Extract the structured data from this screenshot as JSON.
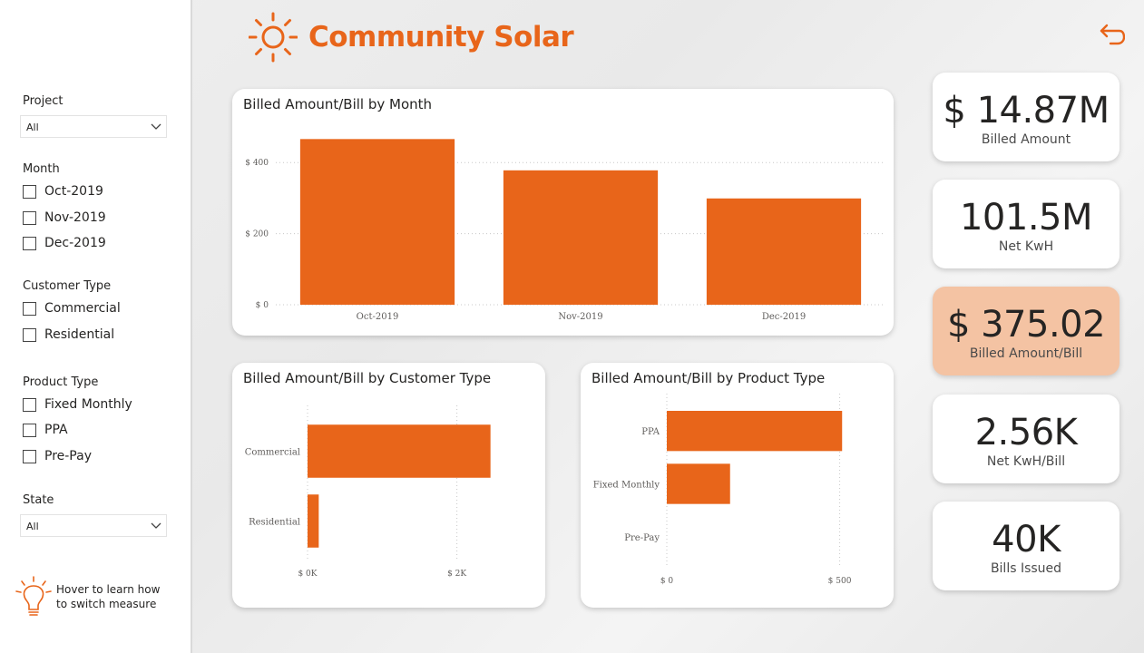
{
  "header": {
    "title": "Community Solar"
  },
  "colors": {
    "accent": "#e8651a",
    "highlight_card": "#f4c3a3"
  },
  "slicers": {
    "project": {
      "title": "Project",
      "value": "All"
    },
    "month": {
      "title": "Month",
      "options": [
        "Oct-2019",
        "Nov-2019",
        "Dec-2019"
      ]
    },
    "customer_type": {
      "title": "Customer Type",
      "options": [
        "Commercial",
        "Residential"
      ]
    },
    "product_type": {
      "title": "Product Type",
      "options": [
        "Fixed Monthly",
        "PPA",
        "Pre-Pay"
      ]
    },
    "state": {
      "title": "State",
      "value": "All"
    }
  },
  "hint": {
    "text": "Hover to learn how to switch measure",
    "icon": "lightbulb-icon"
  },
  "kpis": [
    {
      "value": "$ 14.87M",
      "label": "Billed Amount"
    },
    {
      "value": "101.5M",
      "label": "Net KwH"
    },
    {
      "value": "$ 375.02",
      "label": "Billed Amount/Bill"
    },
    {
      "value": "2.56K",
      "label": "Net KwH/Bill"
    },
    {
      "value": "40K",
      "label": "Bills Issued"
    }
  ],
  "charts": {
    "month": {
      "title": "Billed Amount/Bill by Month"
    },
    "customer": {
      "title": "Billed Amount/Bill by Customer Type"
    },
    "product": {
      "title": "Billed Amount/Bill by Product Type"
    }
  },
  "chart_data": [
    {
      "type": "bar",
      "title": "Billed Amount/Bill by Month",
      "categories": [
        "Oct-2019",
        "Nov-2019",
        "Dec-2019"
      ],
      "values": [
        466,
        378,
        299
      ],
      "ylim": [
        0,
        500
      ],
      "yticks": [
        0,
        200,
        400
      ],
      "ytick_labels": [
        "$ 0",
        "$ 200",
        "$ 400"
      ],
      "grid": true
    },
    {
      "type": "bar",
      "orientation": "horizontal",
      "title": "Billed Amount/Bill by Customer Type",
      "categories": [
        "Commercial",
        "Residential"
      ],
      "values": [
        2450,
        150
      ],
      "xlim": [
        0,
        2600
      ],
      "xticks": [
        0,
        2000
      ],
      "xtick_labels": [
        "$ 0K",
        "$ 2K"
      ],
      "grid": true
    },
    {
      "type": "bar",
      "orientation": "horizontal",
      "title": "Billed Amount/Bill by Product Type",
      "categories": [
        "PPA",
        "Fixed Monthly",
        "Pre-Pay"
      ],
      "values": [
        507,
        183,
        0
      ],
      "xlim": [
        0,
        530
      ],
      "xticks": [
        0,
        500
      ],
      "xtick_labels": [
        "$ 0",
        "$ 500"
      ],
      "grid": true
    }
  ]
}
